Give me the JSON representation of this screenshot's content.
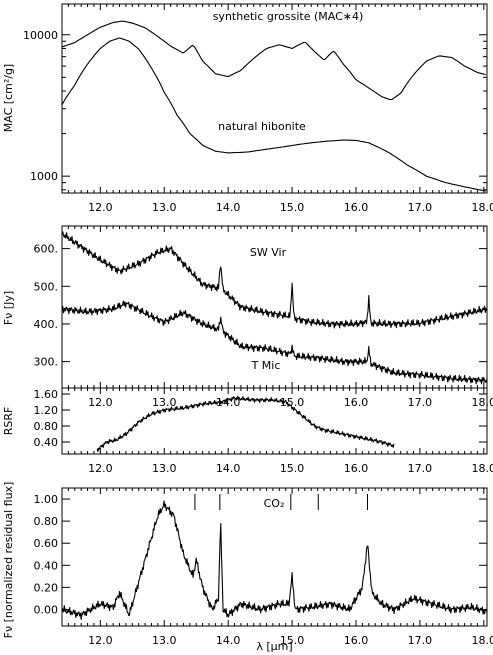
{
  "chart_data": [
    {
      "type": "line",
      "ylabel": "MAC [cm²/g]",
      "yscale": "log",
      "xlim": [
        11.4,
        18.05
      ],
      "ylim": [
        760,
        16500
      ],
      "x_ticks": [
        "12.0",
        "13.0",
        "14.0",
        "15.0",
        "16.0",
        "17.0",
        "18.0"
      ],
      "y_ticks": [
        "1000",
        "10000"
      ],
      "series": [
        {
          "name": "synthetic grossite (MAC∗4)",
          "x": [
            11.4,
            11.6,
            11.8,
            12.0,
            12.2,
            12.35,
            12.5,
            12.7,
            12.9,
            13.1,
            13.3,
            13.45,
            13.6,
            13.8,
            14.0,
            14.2,
            14.4,
            14.6,
            14.8,
            15.0,
            15.2,
            15.35,
            15.5,
            15.65,
            15.8,
            16.0,
            16.2,
            16.4,
            16.55,
            16.7,
            16.9,
            17.1,
            17.3,
            17.5,
            17.7,
            17.9,
            18.05
          ],
          "y": [
            8200,
            8800,
            10000,
            11300,
            12200,
            12500,
            12100,
            11200,
            9700,
            8300,
            7400,
            8500,
            6500,
            5300,
            5050,
            5600,
            6800,
            8000,
            8500,
            8000,
            8900,
            7600,
            6600,
            7700,
            6200,
            4800,
            4200,
            3650,
            3450,
            3850,
            5200,
            6500,
            7100,
            6900,
            6000,
            5400,
            5200
          ]
        },
        {
          "name": "natural hibonite",
          "x": [
            11.4,
            11.6,
            11.8,
            12.0,
            12.15,
            12.3,
            12.45,
            12.6,
            12.8,
            13.0,
            13.2,
            13.4,
            13.6,
            13.8,
            14.0,
            14.3,
            14.6,
            14.9,
            15.2,
            15.5,
            15.8,
            16.0,
            16.2,
            16.5,
            16.8,
            17.1,
            17.4,
            17.7,
            18.05
          ],
          "y": [
            3200,
            4400,
            6200,
            8000,
            9000,
            9500,
            9000,
            7900,
            5800,
            3900,
            2700,
            2000,
            1650,
            1500,
            1460,
            1480,
            1550,
            1620,
            1700,
            1760,
            1800,
            1790,
            1720,
            1480,
            1200,
            1000,
            900,
            840,
            780
          ]
        }
      ]
    },
    {
      "type": "line",
      "ylabel": "Fν [Jy]",
      "xlim": [
        11.4,
        18.05
      ],
      "ylim": [
        230,
        660
      ],
      "x_ticks": [
        "12.0",
        "13.0",
        "14.0",
        "15.0",
        "16.0",
        "17.0",
        "18.0"
      ],
      "y_ticks": [
        "300.",
        "400.",
        "500.",
        "600."
      ],
      "series": [
        {
          "name": "SW Vir",
          "x": [
            11.4,
            11.7,
            12.0,
            12.3,
            12.6,
            12.9,
            13.1,
            13.3,
            13.6,
            13.85,
            13.88,
            13.92,
            14.2,
            14.6,
            14.97,
            15.0,
            15.03,
            15.3,
            15.6,
            16.0,
            16.17,
            16.2,
            16.23,
            16.5,
            17.0,
            17.5,
            18.05
          ],
          "y": [
            640,
            605,
            570,
            540,
            560,
            590,
            600,
            560,
            505,
            495,
            565,
            490,
            445,
            430,
            420,
            510,
            415,
            405,
            400,
            400,
            405,
            470,
            402,
            400,
            402,
            420,
            440
          ]
        },
        {
          "name": "T Mic",
          "x": [
            11.4,
            11.8,
            12.2,
            12.4,
            12.8,
            13.0,
            13.3,
            13.6,
            13.85,
            13.88,
            13.92,
            14.2,
            14.6,
            14.97,
            15.0,
            15.03,
            15.4,
            15.8,
            16.0,
            16.17,
            16.2,
            16.23,
            16.6,
            17.0,
            17.5,
            18.05
          ],
          "y": [
            440,
            432,
            440,
            455,
            420,
            405,
            430,
            400,
            385,
            420,
            380,
            340,
            335,
            320,
            340,
            315,
            310,
            300,
            300,
            300,
            335,
            295,
            270,
            265,
            255,
            250
          ]
        }
      ]
    },
    {
      "type": "line",
      "ylabel": "RSRF",
      "xlim": [
        11.4,
        18.05
      ],
      "ylim": [
        0.1,
        1.75
      ],
      "x_ticks": [
        "12.0",
        "13.0",
        "14.0",
        "15.0",
        "16.0",
        "17.0",
        "18.0"
      ],
      "y_ticks": [
        "0.40",
        "0.80",
        "1.20",
        "1.60"
      ],
      "series": [
        {
          "name": "",
          "x": [
            11.95,
            12.1,
            12.25,
            12.4,
            12.6,
            12.8,
            13.0,
            13.3,
            13.6,
            13.9,
            14.1,
            14.4,
            14.7,
            14.9,
            15.05,
            15.2,
            15.35,
            15.5,
            15.8,
            16.1,
            16.4,
            16.6
          ],
          "y": [
            0.2,
            0.4,
            0.45,
            0.6,
            0.9,
            1.1,
            1.2,
            1.25,
            1.35,
            1.4,
            1.5,
            1.45,
            1.45,
            1.4,
            1.2,
            1.0,
            0.8,
            0.7,
            0.6,
            0.5,
            0.4,
            0.3
          ]
        }
      ]
    },
    {
      "type": "line",
      "ylabel": "Fν [normalized residual flux]",
      "xlabel": "λ [μm]",
      "xlim": [
        11.4,
        18.05
      ],
      "ylim": [
        -0.15,
        1.1
      ],
      "x_ticks": [
        "12.0",
        "13.0",
        "14.0",
        "15.0",
        "16.0",
        "17.0",
        "18.0"
      ],
      "y_ticks": [
        "0.00",
        "0.20",
        "0.40",
        "0.60",
        "0.80",
        "1.00"
      ],
      "annotation": "CO₂",
      "co2_lines": [
        13.48,
        13.87,
        14.98,
        15.41,
        16.18
      ],
      "series": [
        {
          "name": "",
          "x": [
            11.4,
            11.7,
            12.0,
            12.2,
            12.3,
            12.45,
            12.6,
            12.75,
            12.9,
            13.0,
            13.15,
            13.3,
            13.45,
            13.5,
            13.6,
            13.75,
            13.85,
            13.88,
            13.92,
            14.0,
            14.2,
            14.5,
            14.8,
            14.95,
            15.0,
            15.05,
            15.3,
            15.6,
            15.9,
            16.1,
            16.18,
            16.25,
            16.4,
            16.6,
            16.9,
            17.2,
            17.5,
            17.8,
            18.05
          ],
          "y": [
            0.0,
            -0.05,
            0.05,
            0.02,
            0.15,
            -0.05,
            0.25,
            0.55,
            0.85,
            0.95,
            0.85,
            0.5,
            0.3,
            0.45,
            0.2,
            0.0,
            0.1,
            0.82,
            0.0,
            -0.05,
            0.05,
            0.0,
            0.05,
            0.05,
            0.3,
            0.0,
            0.02,
            0.05,
            0.0,
            0.2,
            0.6,
            0.15,
            0.05,
            0.0,
            0.1,
            0.05,
            0.0,
            0.02,
            -0.02
          ]
        }
      ]
    }
  ]
}
